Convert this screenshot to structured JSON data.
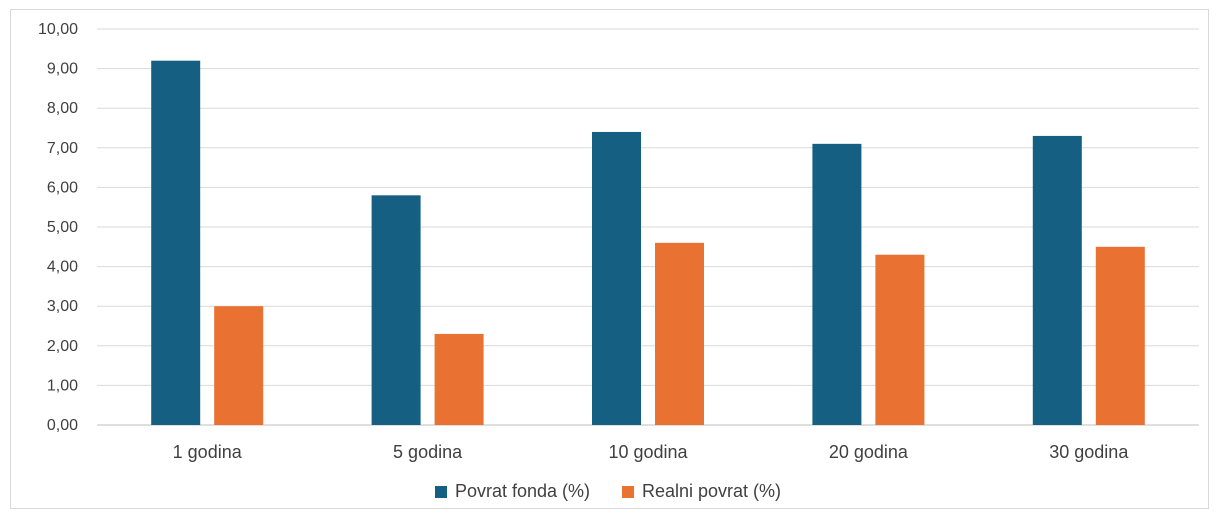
{
  "chart_data": {
    "type": "bar",
    "categories": [
      "1 godina",
      "5 godina",
      "10 godina",
      "20 godina",
      "30 godina"
    ],
    "series": [
      {
        "name": "Povrat fonda (%)",
        "values": [
          9.2,
          5.8,
          7.4,
          7.1,
          7.3
        ],
        "color": "#156082"
      },
      {
        "name": "Realni povrat (%)",
        "values": [
          3.0,
          2.3,
          4.6,
          4.3,
          4.5
        ],
        "color": "#E97132"
      }
    ],
    "yticks": [
      "0,00",
      "1,00",
      "2,00",
      "3,00",
      "4,00",
      "5,00",
      "6,00",
      "7,00",
      "8,00",
      "9,00",
      "10,00"
    ],
    "ylim": [
      0,
      10
    ],
    "grid": true,
    "legend_position": "bottom",
    "title": "",
    "xlabel": "",
    "ylabel": ""
  }
}
